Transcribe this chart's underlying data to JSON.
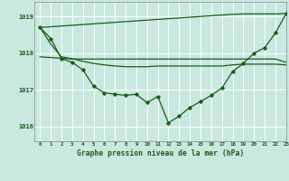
{
  "background_color": "#c8e8e0",
  "grid_color": "#ffffff",
  "line_color": "#1a5c1a",
  "title": "Graphe pression niveau de la mer (hPa)",
  "ylabel_ticks": [
    1016,
    1017,
    1018,
    1019
  ],
  "xlim": [
    -0.5,
    23
  ],
  "ylim": [
    1015.6,
    1019.4
  ],
  "x_hours": [
    0,
    1,
    2,
    3,
    4,
    5,
    6,
    7,
    8,
    9,
    10,
    11,
    12,
    13,
    14,
    15,
    16,
    17,
    18,
    19,
    20,
    21,
    22,
    23
  ],
  "series_main": [
    1018.7,
    1018.4,
    1017.85,
    1017.75,
    1017.55,
    1017.1,
    1016.92,
    1016.88,
    1016.85,
    1016.88,
    1016.65,
    1016.82,
    1016.1,
    1016.28,
    1016.52,
    1016.68,
    1016.85,
    1017.05,
    1017.5,
    1017.72,
    1018.0,
    1018.15,
    1018.55,
    1019.08
  ],
  "series_max": [
    1018.7,
    1018.72,
    1018.74,
    1018.76,
    1018.78,
    1018.8,
    1018.82,
    1018.84,
    1018.86,
    1018.88,
    1018.9,
    1018.92,
    1018.94,
    1018.96,
    1018.98,
    1019.0,
    1019.02,
    1019.04,
    1019.06,
    1019.07,
    1019.07,
    1019.07,
    1019.07,
    1019.08
  ],
  "series_min": [
    1017.9,
    1017.88,
    1017.86,
    1017.84,
    1017.84,
    1017.84,
    1017.84,
    1017.84,
    1017.84,
    1017.84,
    1017.84,
    1017.84,
    1017.84,
    1017.84,
    1017.84,
    1017.84,
    1017.84,
    1017.84,
    1017.84,
    1017.84,
    1017.84,
    1017.84,
    1017.84,
    1017.75
  ],
  "series_avg": [
    1018.7,
    1018.25,
    1017.9,
    1017.85,
    1017.78,
    1017.72,
    1017.68,
    1017.65,
    1017.63,
    1017.63,
    1017.63,
    1017.65,
    1017.65,
    1017.65,
    1017.65,
    1017.65,
    1017.65,
    1017.65,
    1017.68,
    1017.7,
    1017.7,
    1017.7,
    1017.7,
    1017.68
  ]
}
